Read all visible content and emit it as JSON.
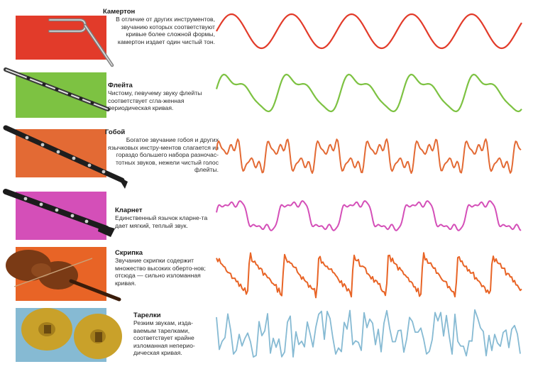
{
  "colors": {
    "tuning_fork": "#e23b2a",
    "flute": "#7dc242",
    "oboe": "#e36a34",
    "clarinet": "#d44fb8",
    "violin": "#e86426",
    "cymbals": "#86bad3"
  },
  "rows": [
    {
      "name": "Камертон",
      "desc": "В отличие от других инструментов, звучанию которых соответствуют кривые более сложной формы, камертон издает один чистый тон.",
      "icon": "tuning-fork-icon"
    },
    {
      "name": "Флейта",
      "desc": "Чистому, певучему звуку флейты соответствует сгла-женная периодическая кривая.",
      "icon": "flute-icon"
    },
    {
      "name": "Гобой",
      "desc": "Богатое звучание гобоя и других язычковых инстру-ментов слагается из гораздо большего набора разночас-тотных звуков, нежели чистый голос флейты.",
      "icon": "oboe-icon"
    },
    {
      "name": "Кларнет",
      "desc": "Единственный язычок кларне-та дает мягкий, теплый звук.",
      "icon": "clarinet-icon"
    },
    {
      "name": "Скрипка",
      "desc": "Звучание скрипки содержит множество высоких оберто-нов; отсюда — сильно изломанная кривая.",
      "icon": "violin-icon"
    },
    {
      "name": "Тарелки",
      "desc": "Резким звукам, изда-ваемым тарелками, соответствует крайне изломанная непериo-дическая кривая.",
      "icon": "cymbals-icon"
    }
  ]
}
